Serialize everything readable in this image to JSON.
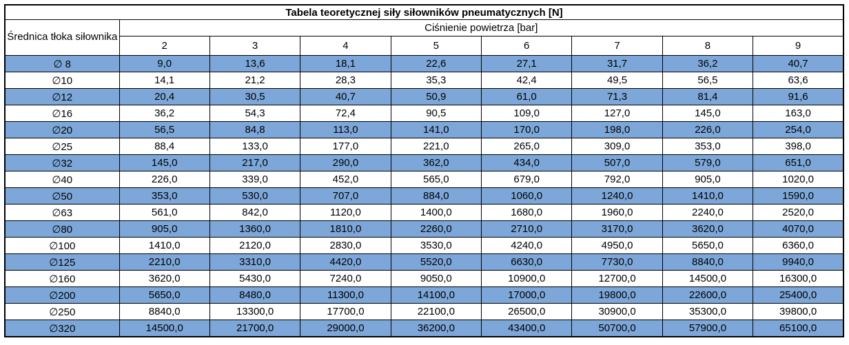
{
  "title": "Tabela teoretycznej siły siłowników pneumatycznych [N]",
  "table": {
    "diameter_header": "Średnica tłoka siłownika",
    "pressure_header": "Ciśnienie powietrza [bar]",
    "pressure_columns": [
      "2",
      "3",
      "4",
      "5",
      "6",
      "7",
      "8",
      "9"
    ],
    "rows": [
      {
        "diameter": "∅ 8",
        "shaded": true,
        "values": [
          "9,0",
          "13,6",
          "18,1",
          "22,6",
          "27,1",
          "31,7",
          "36,2",
          "40,7"
        ]
      },
      {
        "diameter": "∅10",
        "shaded": false,
        "values": [
          "14,1",
          "21,2",
          "28,3",
          "35,3",
          "42,4",
          "49,5",
          "56,5",
          "63,6"
        ]
      },
      {
        "diameter": "∅12",
        "shaded": true,
        "values": [
          "20,4",
          "30,5",
          "40,7",
          "50,9",
          "61,0",
          "71,3",
          "81,4",
          "91,6"
        ]
      },
      {
        "diameter": "∅16",
        "shaded": false,
        "values": [
          "36,2",
          "54,3",
          "72,4",
          "90,5",
          "109,0",
          "127,0",
          "145,0",
          "163,0"
        ]
      },
      {
        "diameter": "∅20",
        "shaded": true,
        "values": [
          "56,5",
          "84,8",
          "113,0",
          "141,0",
          "170,0",
          "198,0",
          "226,0",
          "254,0"
        ]
      },
      {
        "diameter": "∅25",
        "shaded": false,
        "values": [
          "88,4",
          "133,0",
          "177,0",
          "221,0",
          "265,0",
          "309,0",
          "353,0",
          "398,0"
        ]
      },
      {
        "diameter": "∅32",
        "shaded": true,
        "values": [
          "145,0",
          "217,0",
          "290,0",
          "362,0",
          "434,0",
          "507,0",
          "579,0",
          "651,0"
        ]
      },
      {
        "diameter": "∅40",
        "shaded": false,
        "values": [
          "226,0",
          "339,0",
          "452,0",
          "565,0",
          "679,0",
          "792,0",
          "905,0",
          "1020,0"
        ]
      },
      {
        "diameter": "∅50",
        "shaded": true,
        "values": [
          "353,0",
          "530,0",
          "707,0",
          "884,0",
          "1060,0",
          "1240,0",
          "1410,0",
          "1590,0"
        ]
      },
      {
        "diameter": "∅63",
        "shaded": false,
        "values": [
          "561,0",
          "842,0",
          "1120,0",
          "1400,0",
          "1680,0",
          "1960,0",
          "2240,0",
          "2520,0"
        ]
      },
      {
        "diameter": "∅80",
        "shaded": true,
        "values": [
          "905,0",
          "1360,0",
          "1810,0",
          "2260,0",
          "2710,0",
          "3170,0",
          "3620,0",
          "4070,0"
        ]
      },
      {
        "diameter": "∅100",
        "shaded": false,
        "values": [
          "1410,0",
          "2120,0",
          "2830,0",
          "3530,0",
          "4240,0",
          "4950,0",
          "5650,0",
          "6360,0"
        ]
      },
      {
        "diameter": "∅125",
        "shaded": true,
        "values": [
          "2210,0",
          "3310,0",
          "4420,0",
          "5520,0",
          "6630,0",
          "7730,0",
          "8840,0",
          "9940,0"
        ]
      },
      {
        "diameter": "∅160",
        "shaded": false,
        "values": [
          "3620,0",
          "5430,0",
          "7240,0",
          "9050,0",
          "10900,0",
          "12700,0",
          "14500,0",
          "16300,0"
        ]
      },
      {
        "diameter": "∅200",
        "shaded": true,
        "values": [
          "5650,0",
          "8480,0",
          "11300,0",
          "14100,0",
          "17000,0",
          "19800,0",
          "22600,0",
          "25400,0"
        ]
      },
      {
        "diameter": "∅250",
        "shaded": false,
        "values": [
          "8840,0",
          "13300,0",
          "17700,0",
          "22100,0",
          "26500,0",
          "30900,0",
          "35300,0",
          "39800,0"
        ]
      },
      {
        "diameter": "∅320",
        "shaded": true,
        "values": [
          "14500,0",
          "21700,0",
          "29000,0",
          "36200,0",
          "43400,0",
          "50700,0",
          "57900,0",
          "65100,0"
        ]
      }
    ]
  },
  "colors": {
    "row_shade": "#7da7d9",
    "border": "#000000",
    "background": "#ffffff",
    "text": "#000000"
  }
}
